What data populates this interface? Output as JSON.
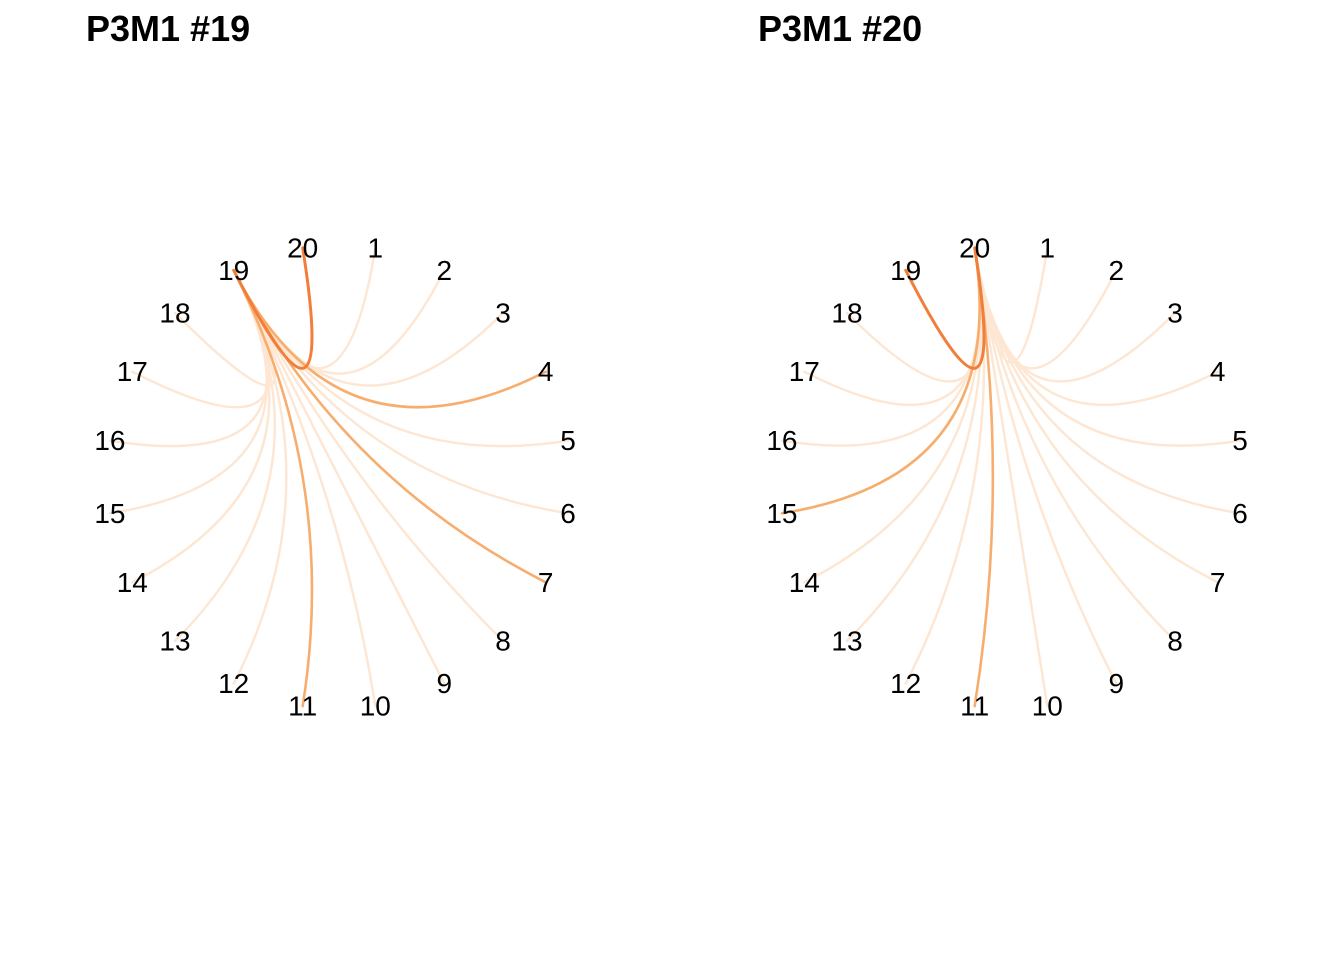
{
  "panels": [
    {
      "title": "P3M1 #19",
      "focus": "19",
      "nodes": [
        "1",
        "2",
        "3",
        "4",
        "5",
        "6",
        "7",
        "8",
        "9",
        "10",
        "11",
        "12",
        "13",
        "14",
        "15",
        "16",
        "17",
        "18",
        "19",
        "20"
      ],
      "links": [
        {
          "target": "20",
          "strength": "strong"
        },
        {
          "target": "4",
          "strength": "medium"
        },
        {
          "target": "7",
          "strength": "medium"
        },
        {
          "target": "11",
          "strength": "medium"
        },
        {
          "target": "1",
          "strength": "weak"
        },
        {
          "target": "2",
          "strength": "weak"
        },
        {
          "target": "3",
          "strength": "weak"
        },
        {
          "target": "5",
          "strength": "weak"
        },
        {
          "target": "6",
          "strength": "weak"
        },
        {
          "target": "8",
          "strength": "weak"
        },
        {
          "target": "9",
          "strength": "weak"
        },
        {
          "target": "10",
          "strength": "weak"
        },
        {
          "target": "12",
          "strength": "weak"
        },
        {
          "target": "13",
          "strength": "weak"
        },
        {
          "target": "14",
          "strength": "weak"
        },
        {
          "target": "15",
          "strength": "weak"
        },
        {
          "target": "16",
          "strength": "weak"
        },
        {
          "target": "17",
          "strength": "weak"
        },
        {
          "target": "18",
          "strength": "weak"
        }
      ]
    },
    {
      "title": "P3M1 #20",
      "focus": "20",
      "nodes": [
        "1",
        "2",
        "3",
        "4",
        "5",
        "6",
        "7",
        "8",
        "9",
        "10",
        "11",
        "12",
        "13",
        "14",
        "15",
        "16",
        "17",
        "18",
        "19",
        "20"
      ],
      "links": [
        {
          "target": "19",
          "strength": "strong"
        },
        {
          "target": "15",
          "strength": "medium"
        },
        {
          "target": "11",
          "strength": "medium"
        },
        {
          "target": "1",
          "strength": "weak"
        },
        {
          "target": "2",
          "strength": "weak"
        },
        {
          "target": "3",
          "strength": "weak"
        },
        {
          "target": "4",
          "strength": "weak"
        },
        {
          "target": "5",
          "strength": "weak"
        },
        {
          "target": "6",
          "strength": "weak"
        },
        {
          "target": "7",
          "strength": "weak"
        },
        {
          "target": "8",
          "strength": "weak"
        },
        {
          "target": "9",
          "strength": "weak"
        },
        {
          "target": "10",
          "strength": "weak"
        },
        {
          "target": "12",
          "strength": "weak"
        },
        {
          "target": "13",
          "strength": "weak"
        },
        {
          "target": "14",
          "strength": "weak"
        },
        {
          "target": "16",
          "strength": "weak"
        },
        {
          "target": "17",
          "strength": "weak"
        },
        {
          "target": "18",
          "strength": "weak"
        }
      ]
    }
  ],
  "colors": {
    "strong": "#F07F3C",
    "medium": "#F7AD6E",
    "weak": "#FDE6D2",
    "label": "#000000"
  }
}
